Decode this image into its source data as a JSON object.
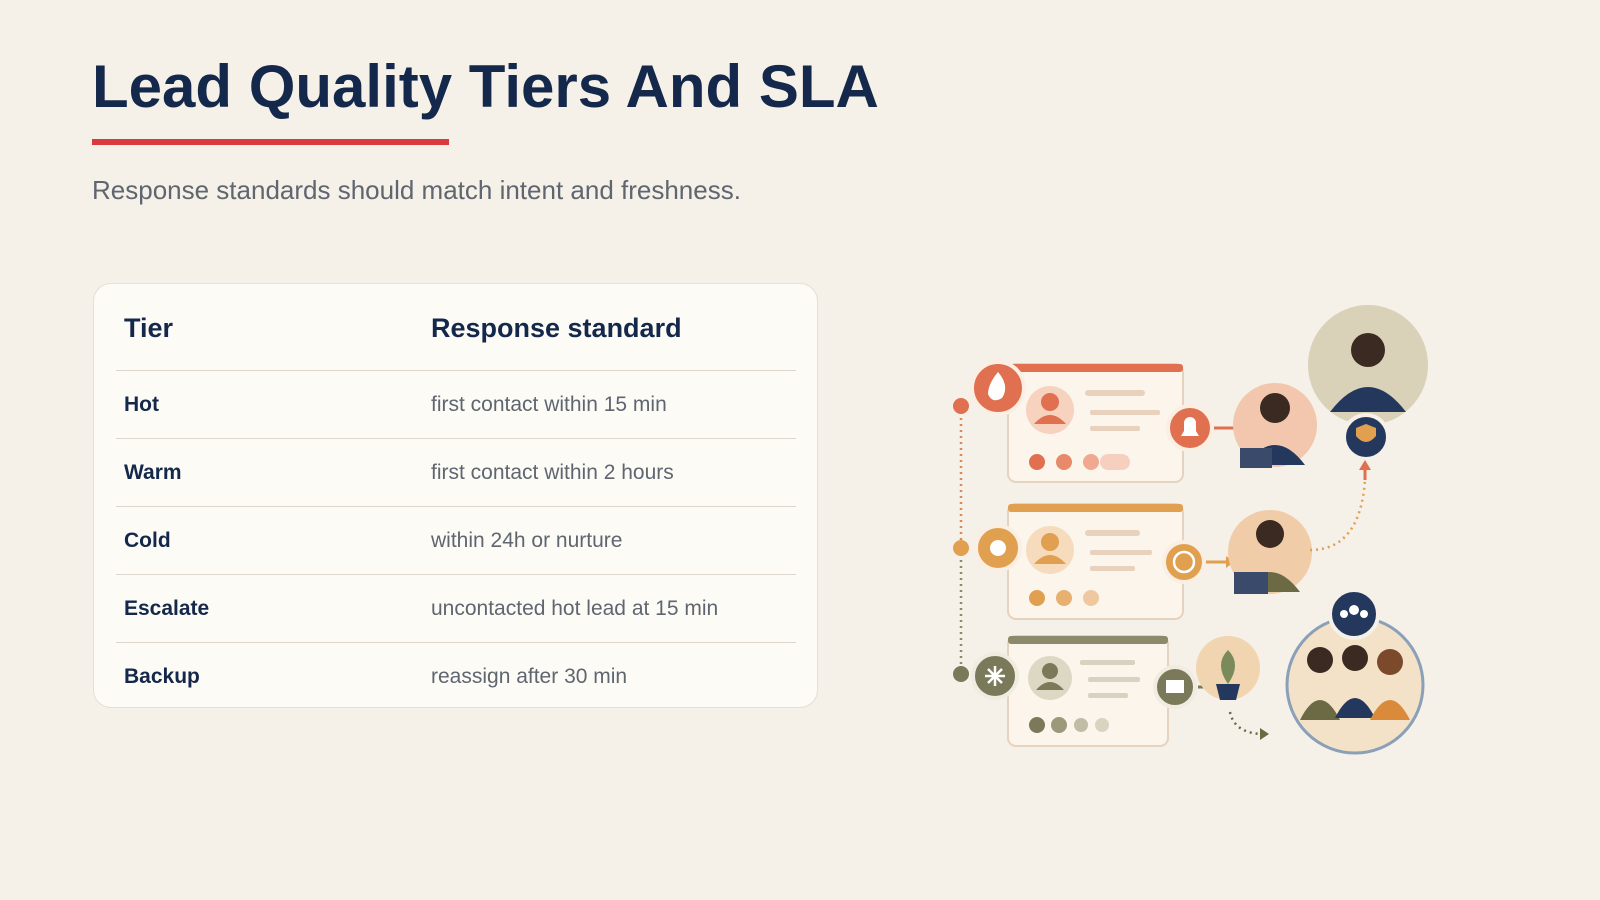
{
  "header": {
    "title": "Lead Quality Tiers And SLA",
    "subtitle": "Response standards should match intent and freshness."
  },
  "table": {
    "columns": [
      "Tier",
      "Response standard"
    ],
    "rows": [
      [
        "Hot",
        "first contact within 15 min"
      ],
      [
        "Warm",
        "first contact within 2 hours"
      ],
      [
        "Cold",
        "within 24h or nurture"
      ],
      [
        "Escalate",
        "uncontacted hot lead at 15 min"
      ],
      [
        "Backup",
        "reassign after 30 min"
      ]
    ]
  }
}
